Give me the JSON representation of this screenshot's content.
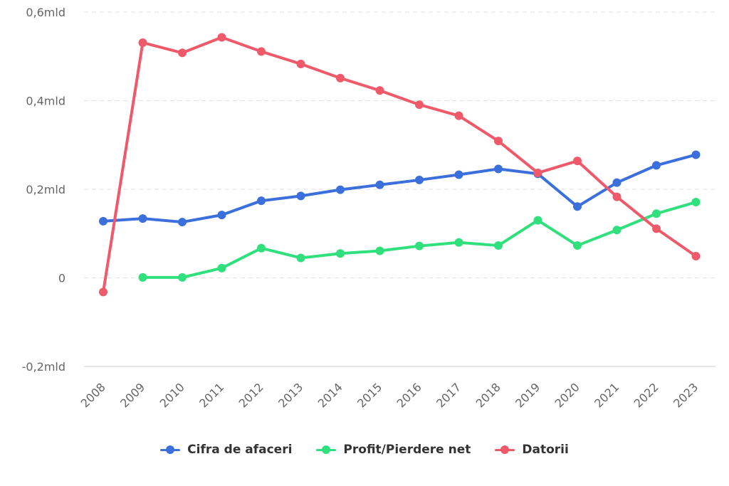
{
  "chart_data": {
    "type": "line",
    "title": "",
    "xlabel": "",
    "ylabel": "",
    "categories": [
      "2008",
      "2009",
      "2010",
      "2011",
      "2012",
      "2013",
      "2014",
      "2015",
      "2016",
      "2017",
      "2018",
      "2019",
      "2020",
      "2021",
      "2022",
      "2023"
    ],
    "ylim": [
      -0.2,
      0.6
    ],
    "yticks": [
      {
        "value": -0.2,
        "label": "-0,2mld"
      },
      {
        "value": 0,
        "label": "0"
      },
      {
        "value": 0.2,
        "label": "0,2mld"
      },
      {
        "value": 0.4,
        "label": "0,4mld"
      },
      {
        "value": 0.6,
        "label": "0,6mld"
      }
    ],
    "grid": true,
    "legend_position": "bottom",
    "series": [
      {
        "name": "Cifra de afaceri",
        "color": "#3a6fdc",
        "values": [
          0.128,
          0.134,
          0.126,
          0.142,
          0.174,
          0.185,
          0.199,
          0.21,
          0.221,
          0.233,
          0.246,
          0.235,
          0.161,
          0.215,
          0.254,
          0.278
        ]
      },
      {
        "name": "Profit/Pierdere net",
        "color": "#2fe07d",
        "values": [
          null,
          0.001,
          0.001,
          0.022,
          0.067,
          0.045,
          0.055,
          0.061,
          0.072,
          0.08,
          0.073,
          0.13,
          0.073,
          0.108,
          0.145,
          0.171
        ]
      },
      {
        "name": "Datorii",
        "color": "#ee5a6a",
        "values": [
          -0.032,
          0.531,
          0.508,
          0.543,
          0.511,
          0.483,
          0.451,
          0.423,
          0.391,
          0.366,
          0.309,
          0.237,
          0.264,
          0.183,
          0.111,
          0.049
        ]
      }
    ]
  }
}
